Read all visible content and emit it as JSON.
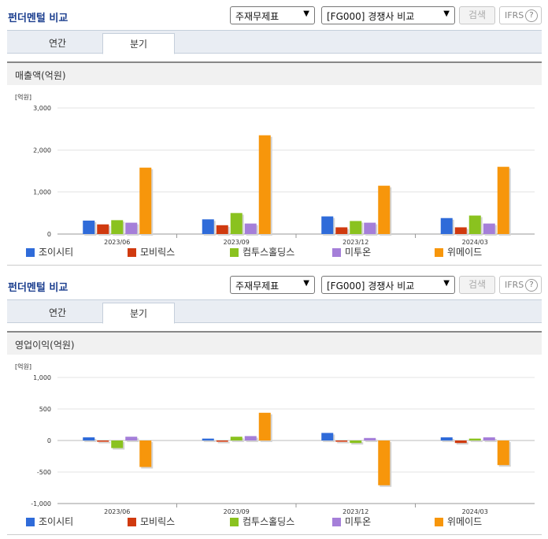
{
  "panels": [
    {
      "title": "펀더멘털 비교",
      "select1": "주재무제표",
      "select2": "[FG000] 경쟁사 비교",
      "search_btn": "검색",
      "ifrs": "IFRS",
      "ifrs_help": "?",
      "tabs": [
        "연간",
        "분기"
      ],
      "active_tab": 1,
      "chart_title": "매출액(억원)"
    },
    {
      "title": "펀더멘털 비교",
      "select1": "주재무제표",
      "select2": "[FG000] 경쟁사 비교",
      "search_btn": "검색",
      "ifrs": "IFRS",
      "ifrs_help": "?",
      "tabs": [
        "연간",
        "분기"
      ],
      "active_tab": 1,
      "chart_title": "영업이익(억원)"
    }
  ],
  "colors": {
    "series": [
      "#2f6bd9",
      "#d03a0f",
      "#8ac21f",
      "#a57fd9",
      "#f7960b"
    ],
    "title": "#1c3f8f"
  },
  "chart_data": [
    {
      "type": "bar",
      "unit": "[억원]",
      "categories": [
        "2023/06",
        "2023/09",
        "2023/12",
        "2024/03"
      ],
      "ylim": [
        0,
        3000
      ],
      "yticks": [
        0,
        1000,
        2000,
        3000
      ],
      "ytick_labels": [
        "0",
        "1,000",
        "2,000",
        "3,000"
      ],
      "grid": true,
      "legend": "bottom",
      "series": [
        {
          "name": "조이시티",
          "values": [
            320,
            350,
            420,
            380
          ]
        },
        {
          "name": "모비릭스",
          "values": [
            230,
            210,
            160,
            160
          ]
        },
        {
          "name": "컴투스홀딩스",
          "values": [
            330,
            500,
            310,
            440
          ]
        },
        {
          "name": "미투온",
          "values": [
            270,
            250,
            270,
            250
          ]
        },
        {
          "name": "위메이드",
          "values": [
            1580,
            2350,
            1150,
            1600
          ]
        }
      ]
    },
    {
      "type": "bar",
      "unit": "[억원]",
      "categories": [
        "2023/06",
        "2023/09",
        "2023/12",
        "2024/03"
      ],
      "ylim": [
        -1000,
        1000
      ],
      "yticks": [
        -1000,
        -500,
        0,
        500,
        1000
      ],
      "ytick_labels": [
        "-1,000",
        "-500",
        "0",
        "500",
        "1,000"
      ],
      "grid": true,
      "legend": "bottom",
      "series": [
        {
          "name": "조이시티",
          "values": [
            50,
            30,
            120,
            50
          ]
        },
        {
          "name": "모비릭스",
          "values": [
            -20,
            -20,
            -20,
            -40
          ]
        },
        {
          "name": "컴투스홀딩스",
          "values": [
            -120,
            60,
            -40,
            30
          ]
        },
        {
          "name": "미투온",
          "values": [
            60,
            70,
            40,
            50
          ]
        },
        {
          "name": "위메이드",
          "values": [
            -420,
            440,
            -710,
            -390
          ]
        }
      ]
    }
  ]
}
